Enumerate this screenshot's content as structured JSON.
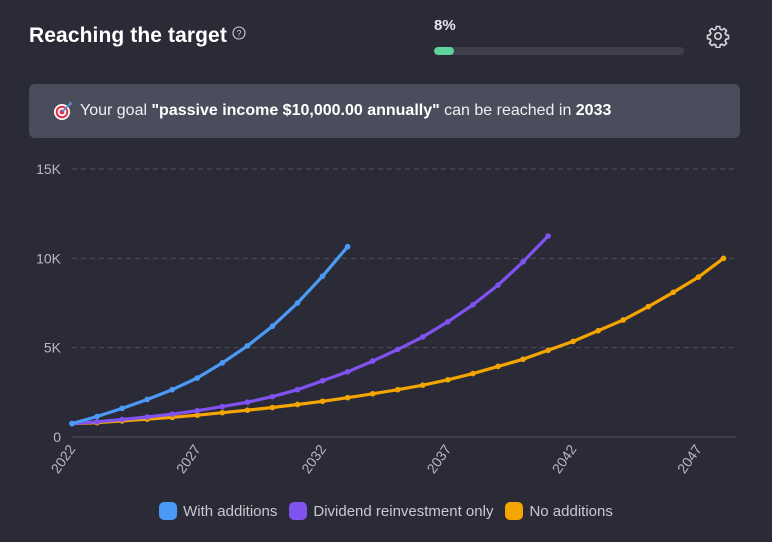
{
  "header": {
    "title": "Reaching the target",
    "progress_label": "8%",
    "progress_value": 0.08
  },
  "goal": {
    "prefix": "Your goal ",
    "target": "\"passive income $10,000.00 annually\"",
    "middle": " can be reached in ",
    "year": "2033"
  },
  "colors": {
    "with_additions": "#4b9bf6",
    "dividend_reinvestment": "#8052f0",
    "no_additions": "#f5a500",
    "progress": "#5fd39a"
  },
  "icons": {
    "help": "help-circle-icon",
    "settings": "gear-icon",
    "goal": "target-dart-icon"
  },
  "chart_data": {
    "type": "line",
    "x_ticks": [
      2022,
      2027,
      2032,
      2037,
      2042,
      2047
    ],
    "y_ticks": [
      "0",
      "5K",
      "10K",
      "15K"
    ],
    "y_tick_values": [
      0,
      5000,
      10000,
      15000
    ],
    "xlim": [
      2022,
      2048.5
    ],
    "ylim": [
      0,
      15000
    ],
    "grid": true,
    "legend_position": "bottom",
    "series": [
      {
        "name": "With additions",
        "color": "#4b9bf6",
        "x": [
          2022,
          2023,
          2024,
          2025,
          2026,
          2027,
          2028,
          2029,
          2030,
          2031,
          2032,
          2033
        ],
        "values": [
          750,
          1150,
          1600,
          2100,
          2650,
          3300,
          4150,
          5100,
          6200,
          7500,
          9000,
          10650
        ]
      },
      {
        "name": "Dividend reinvestment only",
        "color": "#8052f0",
        "x": [
          2022,
          2023,
          2024,
          2025,
          2026,
          2027,
          2028,
          2029,
          2030,
          2031,
          2032,
          2033,
          2034,
          2035,
          2036,
          2037,
          2038,
          2039,
          2040,
          2041
        ],
        "values": [
          750,
          850,
          980,
          1120,
          1280,
          1470,
          1700,
          1950,
          2260,
          2650,
          3150,
          3650,
          4250,
          4900,
          5600,
          6450,
          7400,
          8500,
          9800,
          11250
        ]
      },
      {
        "name": "No additions",
        "color": "#f5a500",
        "x": [
          2022,
          2023,
          2024,
          2025,
          2026,
          2027,
          2028,
          2029,
          2030,
          2031,
          2032,
          2033,
          2034,
          2035,
          2036,
          2037,
          2038,
          2039,
          2040,
          2041,
          2042,
          2043,
          2044,
          2045,
          2046,
          2047,
          2048
        ],
        "values": [
          750,
          800,
          900,
          1000,
          1100,
          1220,
          1360,
          1500,
          1650,
          1820,
          2000,
          2200,
          2420,
          2650,
          2900,
          3200,
          3550,
          3950,
          4350,
          4850,
          5350,
          5950,
          6550,
          7300,
          8100,
          8950,
          10000
        ]
      }
    ]
  }
}
